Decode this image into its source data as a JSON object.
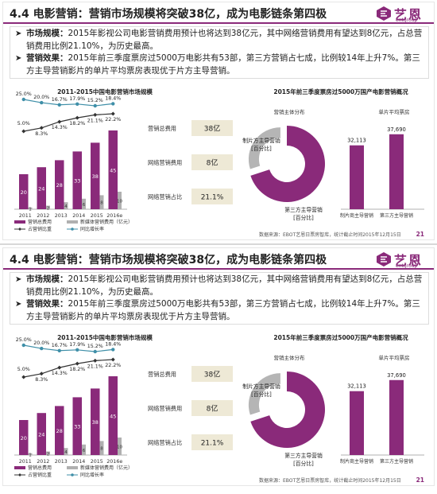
{
  "title": "4.4 电影营销：营销市场规模将突破38亿，成为电影链条第四极",
  "brand": {
    "name_cn": "艺恩",
    "name_en": "entgroup",
    "color": "#8a2a7a"
  },
  "bullets": [
    {
      "label": "市场规模：",
      "text": "2015年影视公司电影营销费用预计也将达到38亿元，其中网络营销费用有望达到8亿元，占总营销费用比例21.10%，为历史最高。"
    },
    {
      "label": "营销效果：",
      "text": "2015年前三季度票房过5000万电影共有53部，第三方营销占七成，比例较14年上升7%。第三方主导营销影片的单片平均票房表现优于片方主导营销。"
    }
  ],
  "left_chart_title": "2011-2015中国电影营销市场规模",
  "right_chart_title": "2015年前三季度票房过5000万国产电影营销概况",
  "chart_data": [
    {
      "type": "bar",
      "title": "2011-2015中国电影营销市场规模",
      "categories": [
        "2011",
        "2012",
        "2013",
        "2014",
        "2015",
        "2016e"
      ],
      "series": [
        {
          "name": "营销总费用",
          "values": [
            20,
            24,
            28,
            33,
            38,
            45
          ],
          "color": "#8a2a7a"
        },
        {
          "name": "新媒体营销费用（亿元）",
          "values": [
            1,
            2,
            4,
            6,
            8,
            10
          ],
          "color": "#b0b0b0"
        }
      ],
      "lines": [
        {
          "name": "占营销比重",
          "values": [
            5.0,
            8.3,
            14.3,
            18.2,
            21.1,
            22.2
          ],
          "labels": [
            "5.0%",
            "8.3%",
            "14.3%",
            "18.2%",
            "21.1%",
            "22.2%"
          ],
          "color": "#333333"
        },
        {
          "name": "同比增长率",
          "values": [
            25.0,
            20.0,
            16.7,
            17.9,
            15.2,
            18.4
          ],
          "labels": [
            "25.0%",
            "20.0%",
            "16.7%",
            "17.9%",
            "15.2%",
            "18.4%"
          ],
          "color": "#3f8fa8"
        }
      ],
      "ylim": [
        0,
        50
      ]
    },
    {
      "type": "pie",
      "title": "营销主体分布",
      "slices": [
        {
          "name": "第三方主导营销",
          "value": 70,
          "color": "#8a2a7a"
        },
        {
          "name": "制片方主导营销",
          "value": 30,
          "color": "#b5b5b5"
        }
      ]
    },
    {
      "type": "bar",
      "title": "单片平均票房",
      "categories": [
        "制片商主导营销",
        "第三方主导营销"
      ],
      "values": [
        32113,
        37690
      ],
      "value_labels": [
        "32,113",
        "37,690"
      ],
      "color": "#8a2a7a"
    }
  ],
  "info_boxes": [
    {
      "label": "营销总费用",
      "value": "38亿"
    },
    {
      "label": "网络营销费用",
      "value": "8亿"
    },
    {
      "label": "网络营销占比",
      "value": "21.1%"
    }
  ],
  "pie_labels": {
    "producer": "制片方主导营销",
    "third": "第三方主导营销",
    "unit": "[百分比]"
  },
  "source": "数据来源：EBOT艺恩日票房智库，统计截止时间2015年12月15日",
  "page_number": "21"
}
